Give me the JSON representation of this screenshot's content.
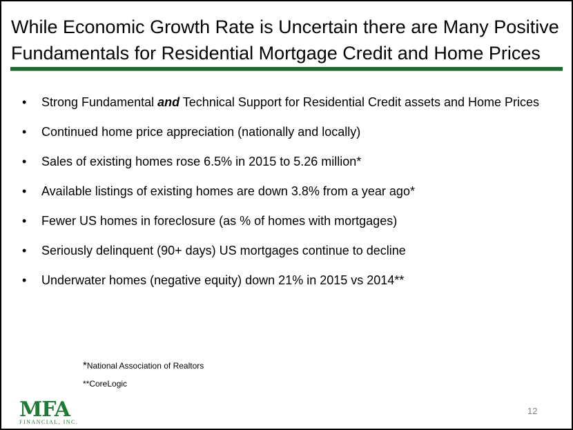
{
  "slide": {
    "title": "While Economic Growth Rate is Uncertain there are Many Positive Fundamentals for Residential Mortgage Credit and Home Prices",
    "bullets": [
      {
        "before": "Strong Fundamental ",
        "emphasis": "and",
        "after": " Technical Support for Residential Credit assets and Home Prices"
      },
      {
        "text": "Continued home price appreciation (nationally and locally)"
      },
      {
        "text": "Sales of existing homes rose 6.5% in 2015 to 5.26 million*"
      },
      {
        "text": "Available listings of existing homes are down 3.8% from a year ago*"
      },
      {
        "text": "Fewer US homes in foreclosure (as % of homes with mortgages)"
      },
      {
        "text": "Seriously delinquent (90+ days) US mortgages continue to decline"
      },
      {
        "text": "Underwater homes (negative equity) down 21% in 2015 vs 2014**"
      }
    ],
    "footnotes": [
      {
        "marker": "*",
        "text": "National Association of Realtors"
      },
      {
        "marker": "**",
        "text": "CoreLogic"
      }
    ],
    "page_number": "12",
    "logo": {
      "mark": "MFA",
      "subtitle": "FINANCIAL, INC."
    },
    "colors": {
      "accent": "#1d6a2c",
      "logo": "#1f7a34",
      "page_number": "#7f7f7f"
    }
  }
}
